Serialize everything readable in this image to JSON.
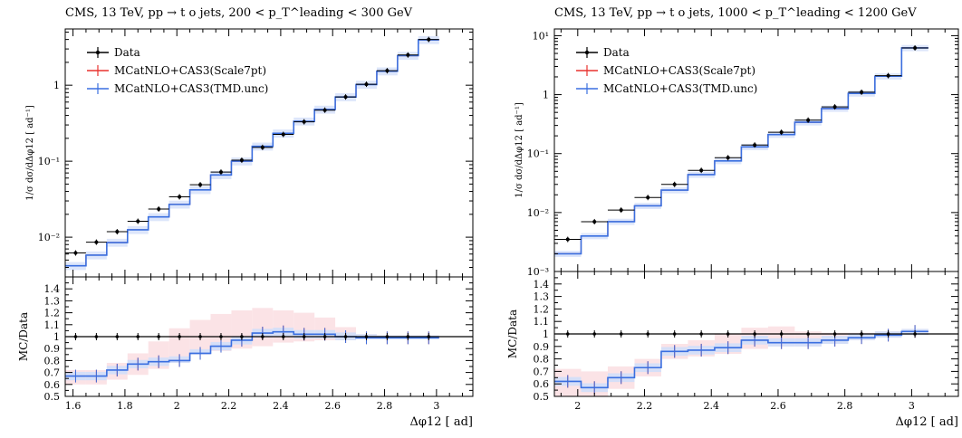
{
  "chart_data": [
    {
      "type": "step",
      "title": "CMS, 13 TeV, pp → t  o jets, 200 < p_T^leading < 300 GeV",
      "xlabel": "Δφ12 [ ad]",
      "ylabel": "1/σ dσ/dΔφ12 [ ad⁻¹]",
      "ratio_ylabel": "MC/Data",
      "xlim": [
        1.57,
        3.14
      ],
      "ylim": [
        0.003,
        5.5
      ],
      "yscale": "log",
      "ratio_ylim": [
        0.5,
        1.5
      ],
      "xticks": [
        1.6,
        1.8,
        2,
        2.2,
        2.4,
        2.6,
        2.8,
        3
      ],
      "xtick_labels": [
        "1.6",
        "1.8",
        "2",
        "2.2",
        "2.4",
        "2.6",
        "2.8",
        "3"
      ],
      "ytick_labels": [
        "10⁻²",
        "10⁻¹",
        "1"
      ],
      "ratio_ytick_labels": [
        "0.5",
        "0.6",
        "0.7",
        "0.8",
        "0.9",
        "1",
        "1.1",
        "1.2",
        "1.3",
        "1.4"
      ],
      "legend": "top-left",
      "bin_edges": [
        1.57,
        1.65,
        1.73,
        1.81,
        1.89,
        1.97,
        2.05,
        2.13,
        2.21,
        2.29,
        2.37,
        2.45,
        2.53,
        2.61,
        2.69,
        2.77,
        2.85,
        2.93,
        3.01,
        3.07,
        3.14
      ],
      "series": [
        {
          "name": "Data",
          "color": "#000000",
          "values": [
            0.0062,
            0.0086,
            0.0118,
            0.0162,
            0.0235,
            0.034,
            0.049,
            0.072,
            0.103,
            0.152,
            0.225,
            0.33,
            0.47,
            0.7,
            1.03,
            1.55,
            2.5,
            4.0,
            0,
            0
          ]
        },
        {
          "name": "MCatNLO+CAS3(Scale7pt)",
          "color": "#e8322e",
          "values": [
            0.0042,
            0.0058,
            0.0085,
            0.0125,
            0.0185,
            0.027,
            0.042,
            0.066,
            0.1,
            0.157,
            0.233,
            0.335,
            0.48,
            0.7,
            1.02,
            1.53,
            2.45,
            3.95,
            0,
            0
          ]
        },
        {
          "name": "MCatNLO+CAS3(TMD.unc)",
          "color": "#3a6fe0",
          "values": [
            0.0042,
            0.0058,
            0.0085,
            0.0125,
            0.0185,
            0.027,
            0.042,
            0.066,
            0.1,
            0.157,
            0.233,
            0.335,
            0.48,
            0.7,
            1.02,
            1.53,
            2.45,
            3.95,
            0,
            0
          ]
        }
      ],
      "ratio": {
        "data": [
          1,
          1,
          1,
          1,
          1,
          1,
          1,
          1,
          1,
          1,
          1,
          1,
          1,
          1,
          1,
          1,
          1,
          1,
          0,
          0
        ],
        "mc": [
          0.67,
          0.67,
          0.72,
          0.77,
          0.79,
          0.8,
          0.86,
          0.92,
          0.97,
          1.03,
          1.04,
          1.02,
          1.02,
          1.0,
          0.99,
          0.99,
          0.99,
          0.99,
          0,
          0
        ],
        "band_low": [
          0.6,
          0.6,
          0.64,
          0.68,
          0.73,
          0.78,
          0.85,
          0.88,
          0.9,
          0.92,
          0.95,
          0.96,
          0.97,
          0.97,
          0.98,
          0.98,
          0.98,
          0.98,
          0,
          0
        ],
        "band_high": [
          0.72,
          0.72,
          0.78,
          0.86,
          0.96,
          1.07,
          1.14,
          1.19,
          1.22,
          1.24,
          1.22,
          1.2,
          1.16,
          1.08,
          1.02,
          1.01,
          1.01,
          1.01,
          0,
          0
        ]
      }
    },
    {
      "type": "step",
      "title": "CMS, 13 TeV, pp → t  o jets, 1000 < p_T^leading < 1200 GeV",
      "xlabel": "Δφ12 [ ad]",
      "ylabel": "1/σ dσ/dΔφ12 [ ad⁻¹]",
      "ratio_ylabel": "MC/Data",
      "xlim": [
        1.93,
        3.14
      ],
      "ylim": [
        0.001,
        13
      ],
      "yscale": "log",
      "ratio_ylim": [
        0.5,
        1.5
      ],
      "xticks": [
        2,
        2.2,
        2.4,
        2.6,
        2.8,
        3
      ],
      "xtick_labels": [
        "2",
        "2.2",
        "2.4",
        "2.6",
        "2.8",
        "3"
      ],
      "ytick_labels": [
        "10⁻³",
        "10⁻²",
        "10⁻¹",
        "1",
        "10¹"
      ],
      "ratio_ytick_labels": [
        "0.5",
        "0.6",
        "0.7",
        "0.8",
        "0.9",
        "1",
        "1.1",
        "1.2",
        "1.3",
        "1.4"
      ],
      "legend": "top-left",
      "bin_edges": [
        1.93,
        2.01,
        2.09,
        2.17,
        2.25,
        2.33,
        2.41,
        2.49,
        2.57,
        2.65,
        2.73,
        2.81,
        2.89,
        2.97,
        3.05,
        3.14
      ],
      "series": [
        {
          "name": "Data",
          "color": "#000000",
          "values": [
            0.0035,
            0.007,
            0.011,
            0.018,
            0.03,
            0.052,
            0.085,
            0.14,
            0.23,
            0.37,
            0.62,
            1.1,
            2.1,
            6.2
          ]
        },
        {
          "name": "MCatNLO+CAS3(Scale7pt)",
          "color": "#e8322e",
          "values": [
            0.002,
            0.004,
            0.007,
            0.013,
            0.024,
            0.044,
            0.075,
            0.13,
            0.21,
            0.34,
            0.58,
            1.05,
            2.05,
            6.2
          ]
        },
        {
          "name": "MCatNLO+CAS3(TMD.unc)",
          "color": "#3a6fe0",
          "values": [
            0.002,
            0.004,
            0.007,
            0.013,
            0.024,
            0.044,
            0.075,
            0.13,
            0.21,
            0.34,
            0.58,
            1.05,
            2.05,
            6.2
          ]
        }
      ],
      "ratio": {
        "data": [
          1,
          1,
          1,
          1,
          1,
          1,
          1,
          1,
          1,
          1,
          1,
          1,
          1,
          1
        ],
        "mc": [
          0.62,
          0.57,
          0.65,
          0.73,
          0.86,
          0.87,
          0.89,
          0.95,
          0.93,
          0.93,
          0.95,
          0.97,
          0.99,
          1.02
        ],
        "band_low": [
          0.5,
          0.5,
          0.56,
          0.66,
          0.8,
          0.82,
          0.84,
          0.88,
          0.9,
          0.9,
          0.92,
          0.95,
          0.97,
          0.99
        ],
        "band_high": [
          0.72,
          0.7,
          0.74,
          0.8,
          0.92,
          0.95,
          1.0,
          1.05,
          1.06,
          1.02,
          1.01,
          1.01,
          1.02,
          1.04
        ]
      }
    }
  ]
}
